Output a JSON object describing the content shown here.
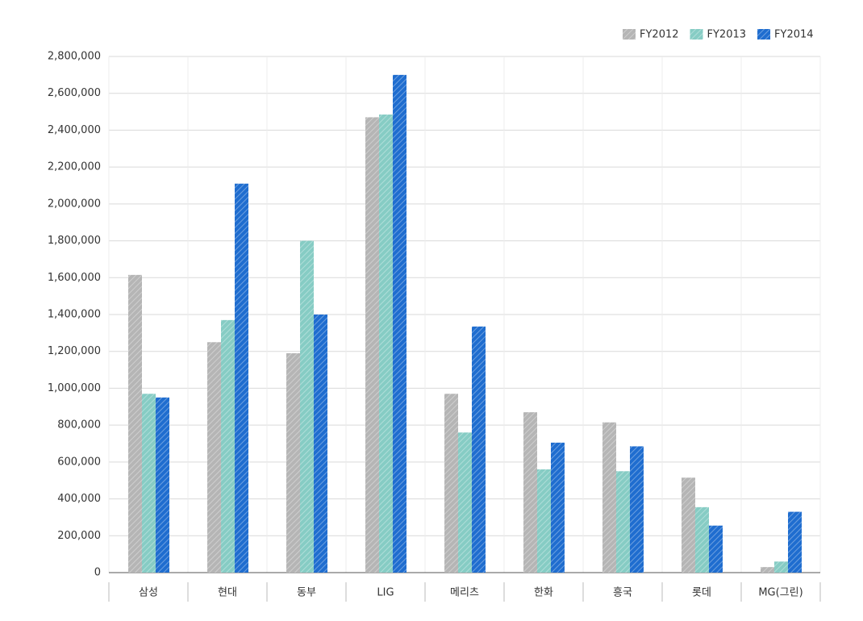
{
  "chart_data": {
    "type": "bar",
    "categories": [
      "삼성",
      "현대",
      "동부",
      "LIG",
      "메리츠",
      "한화",
      "흥국",
      "롯데",
      "MG(그린)"
    ],
    "series": [
      {
        "name": "FY2012",
        "color": "#b5b5b5",
        "values": [
          1615000,
          1250000,
          1190000,
          2470000,
          970000,
          870000,
          815000,
          515000,
          30000
        ]
      },
      {
        "name": "FY2013",
        "color": "#86ccc4",
        "values": [
          970000,
          1370000,
          1800000,
          2485000,
          760000,
          560000,
          550000,
          355000,
          60000
        ]
      },
      {
        "name": "FY2014",
        "color": "#1f6dcf",
        "values": [
          950000,
          2110000,
          1400000,
          2700000,
          1335000,
          705000,
          685000,
          255000,
          330000
        ]
      }
    ],
    "ylim": [
      0,
      2800000
    ],
    "yticks": [
      {
        "value": 0,
        "label": "0"
      },
      {
        "value": 200000,
        "label": "200,000"
      },
      {
        "value": 400000,
        "label": "400,000"
      },
      {
        "value": 600000,
        "label": "600,000"
      },
      {
        "value": 800000,
        "label": "800,000"
      },
      {
        "value": 1000000,
        "label": "1,000,000"
      },
      {
        "value": 1200000,
        "label": "1,200,000"
      },
      {
        "value": 1400000,
        "label": "1,400,000"
      },
      {
        "value": 1600000,
        "label": "1,600,000"
      },
      {
        "value": 1800000,
        "label": "1,800,000"
      },
      {
        "value": 2000000,
        "label": "2,000,000"
      },
      {
        "value": 2200000,
        "label": "2,200,000"
      },
      {
        "value": 2400000,
        "label": "2,400,000"
      },
      {
        "value": 2600000,
        "label": "2,600,000"
      },
      {
        "value": 2800000,
        "label": "2,800,000"
      }
    ],
    "grid": true,
    "legend": "top-right"
  }
}
